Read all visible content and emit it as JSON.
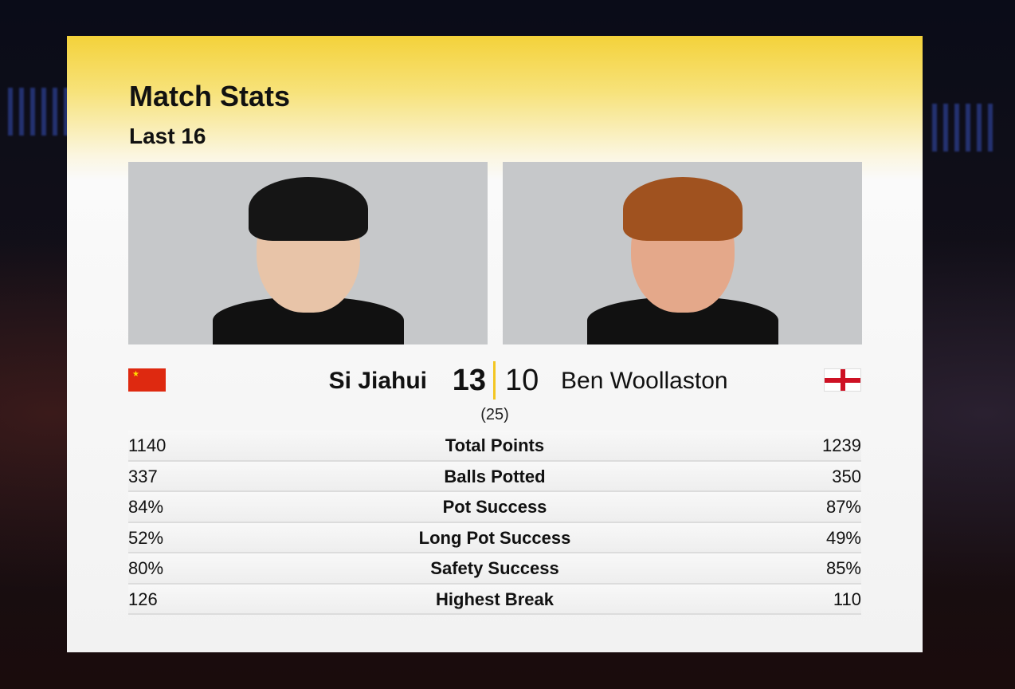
{
  "header": {
    "title": "Match Stats",
    "subtitle": "Last 16"
  },
  "players": [
    {
      "name": "Si Jiahui",
      "score": "13",
      "flag": "china-flag"
    },
    {
      "name": "Ben Woollaston",
      "score": "10",
      "flag": "england-flag"
    }
  ],
  "frames": "(25)",
  "stats": [
    {
      "label": "Total Points",
      "left": "1140",
      "right": "1239"
    },
    {
      "label": "Balls Potted",
      "left": "337",
      "right": "350"
    },
    {
      "label": "Pot Success",
      "left": "84%",
      "right": "87%"
    },
    {
      "label": "Long Pot Success",
      "left": "52%",
      "right": "49%"
    },
    {
      "label": "Safety Success",
      "left": "80%",
      "right": "85%"
    },
    {
      "label": "Highest Break",
      "left": "126",
      "right": "110"
    }
  ],
  "colors": {
    "accent": "#f3c623",
    "panel": "#f2f2f2"
  }
}
